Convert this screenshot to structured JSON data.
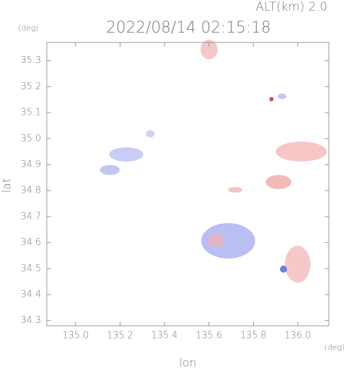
{
  "chart_data": {
    "type": "map",
    "altitude_label": "ALT(km) 2.0",
    "title": "2022/08/14 02:15:18",
    "y_unit": "(deg)",
    "x_unit": "(deg)",
    "xlabel": "lon",
    "ylabel": "lat",
    "xlim": [
      134.87,
      136.14
    ],
    "ylim": [
      34.28,
      35.37
    ],
    "xticks": [
      {
        "value": 135,
        "label": "135.0"
      },
      135.2,
      135.4,
      135.6,
      135.8,
      {
        "value": 136,
        "label": "136.0"
      }
    ],
    "yticks": [
      34.3,
      34.4,
      34.5,
      34.6,
      34.7,
      34.8,
      34.9,
      {
        "value": 35,
        "label": "35.0"
      },
      35.1,
      35.2,
      35.3
    ]
  }
}
